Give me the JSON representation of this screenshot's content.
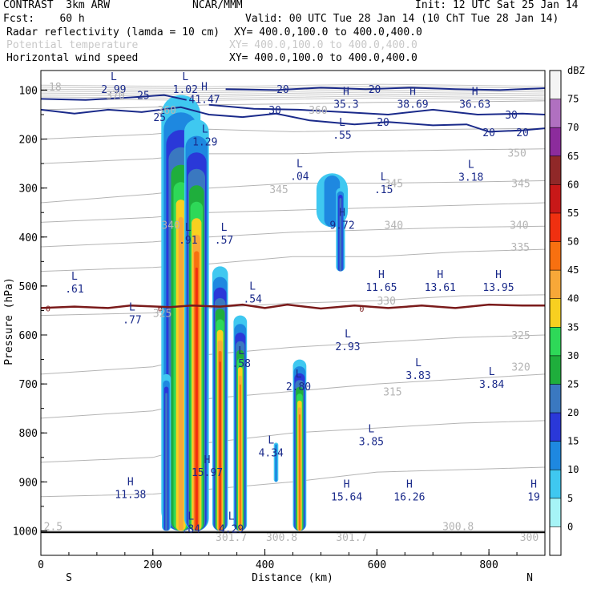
{
  "header": {
    "line1_left": "CONTRAST  3km ARW",
    "line1_center": "NCAR/MMM",
    "line1_right": "Init: 12 UTC Sat 25 Jan 14",
    "line2_left": "Fcst:    60 h",
    "line2_right": "Valid: 00 UTC Tue 28 Jan 14 (10 ChT Tue 28 Jan 14)",
    "field1_name": "Radar reflectivity (lamda = 10 cm)",
    "field1_xy": "XY= 400.0,100.0 to 400.0,400.0",
    "field2_name": "Potential temperature",
    "field2_xy": "XY= 400.0,100.0 to 400.0,400.0",
    "field3_name": "Horizontal wind speed",
    "field3_xy": "XY= 400.0,100.0 to 400.0,400.0"
  },
  "chart_data": {
    "type": "cross-section",
    "xlabel": "Distance (km)",
    "ylabel": "Pressure (hPa)",
    "xlim": [
      0,
      900
    ],
    "ylim": [
      1050,
      60
    ],
    "x_ticks": [
      0,
      200,
      400,
      600,
      800
    ],
    "x_tick_labels": [
      "0",
      "200",
      "400",
      "600",
      "800"
    ],
    "y_ticks": [
      100,
      200,
      300,
      400,
      500,
      600,
      700,
      800,
      900,
      1000
    ],
    "y_tick_labels": [
      "100",
      "200",
      "300",
      "400",
      "500",
      "600",
      "700",
      "800",
      "900",
      "1000"
    ],
    "south_label": "S",
    "north_label": "N",
    "colorbar": {
      "unit": "dBZ",
      "levels": [
        0,
        5,
        10,
        15,
        20,
        25,
        30,
        35,
        40,
        45,
        50,
        55,
        60,
        65,
        70,
        75
      ],
      "level_labels": [
        "0",
        "5",
        "10",
        "15",
        "20",
        "25",
        "30",
        "35",
        "40",
        "45",
        "50",
        "55",
        "60",
        "65",
        "70",
        "75"
      ],
      "colors": [
        "#ffffff",
        "#a6f4f6",
        "#3fc8f0",
        "#1e88e0",
        "#2a38d8",
        "#3a78c0",
        "#1fae3c",
        "#2ed858",
        "#f8d020",
        "#f8a838",
        "#f87010",
        "#f03010",
        "#c81818",
        "#902828",
        "#8c2c9c",
        "#b070c0",
        "#f4f4f4"
      ]
    },
    "freezing_level": {
      "label": "0",
      "points": [
        [
          0,
          545
        ],
        [
          60,
          542
        ],
        [
          120,
          545
        ],
        [
          160,
          540
        ],
        [
          230,
          543
        ],
        [
          270,
          540
        ],
        [
          320,
          542
        ],
        [
          360,
          538
        ],
        [
          400,
          545
        ],
        [
          440,
          538
        ],
        [
          500,
          546
        ],
        [
          560,
          540
        ],
        [
          620,
          545
        ],
        [
          680,
          540
        ],
        [
          740,
          545
        ],
        [
          800,
          538
        ],
        [
          860,
          540
        ],
        [
          900,
          540
        ]
      ]
    },
    "ground_line": [
      [
        0,
        1003
      ],
      [
        900,
        1003
      ]
    ],
    "theta_contours": [
      {
        "level": 300,
        "points": [
          [
            0,
            1000
          ],
          [
            900,
            1000
          ]
        ]
      },
      {
        "level": 305,
        "points": [
          [
            0,
            930
          ],
          [
            200,
            925
          ],
          [
            300,
            915
          ],
          [
            450,
            900
          ],
          [
            600,
            880
          ],
          [
            750,
            875
          ],
          [
            900,
            870
          ]
        ]
      },
      {
        "level": 310,
        "points": [
          [
            0,
            860
          ],
          [
            200,
            850
          ],
          [
            300,
            820
          ],
          [
            450,
            800
          ],
          [
            600,
            790
          ],
          [
            750,
            780
          ],
          [
            900,
            775
          ]
        ]
      },
      {
        "level": 315,
        "points": [
          [
            0,
            770
          ],
          [
            200,
            755
          ],
          [
            300,
            730
          ],
          [
            450,
            715
          ],
          [
            600,
            700
          ],
          [
            750,
            690
          ],
          [
            900,
            680
          ]
        ]
      },
      {
        "level": 320,
        "points": [
          [
            0,
            680
          ],
          [
            200,
            665
          ],
          [
            300,
            640
          ],
          [
            450,
            625
          ],
          [
            600,
            615
          ],
          [
            750,
            605
          ],
          [
            900,
            600
          ]
        ]
      },
      {
        "level": 325,
        "points": [
          [
            0,
            560
          ],
          [
            200,
            555
          ],
          [
            300,
            545
          ],
          [
            450,
            535
          ],
          [
            600,
            530
          ],
          [
            750,
            520
          ],
          [
            900,
            518
          ]
        ]
      },
      {
        "level": 330,
        "points": [
          [
            0,
            470
          ],
          [
            200,
            462
          ],
          [
            300,
            455
          ],
          [
            450,
            440
          ],
          [
            600,
            440
          ],
          [
            750,
            430
          ],
          [
            900,
            425
          ]
        ]
      },
      {
        "level": 335,
        "points": [
          [
            0,
            420
          ],
          [
            200,
            410
          ],
          [
            300,
            400
          ],
          [
            450,
            390
          ],
          [
            600,
            385
          ],
          [
            750,
            380
          ],
          [
            900,
            378
          ]
        ]
      },
      {
        "level": 340,
        "points": [
          [
            0,
            370
          ],
          [
            200,
            360
          ],
          [
            300,
            350
          ],
          [
            450,
            345
          ],
          [
            600,
            340
          ],
          [
            750,
            335
          ],
          [
            900,
            330
          ]
        ]
      },
      {
        "level": 345,
        "points": [
          [
            0,
            330
          ],
          [
            200,
            312
          ],
          [
            300,
            300
          ],
          [
            450,
            290
          ],
          [
            600,
            290
          ],
          [
            750,
            288
          ],
          [
            900,
            285
          ]
        ]
      },
      {
        "level": 350,
        "points": [
          [
            0,
            250
          ],
          [
            200,
            240
          ],
          [
            300,
            230
          ],
          [
            450,
            230
          ],
          [
            600,
            225
          ],
          [
            750,
            222
          ],
          [
            900,
            220
          ]
        ]
      },
      {
        "level": 355,
        "points": [
          [
            0,
            200
          ],
          [
            200,
            190
          ],
          [
            300,
            180
          ],
          [
            450,
            185
          ],
          [
            600,
            182
          ],
          [
            750,
            180
          ],
          [
            900,
            178
          ]
        ]
      },
      {
        "level": 360,
        "points": [
          [
            0,
            140
          ],
          [
            200,
            135
          ],
          [
            300,
            130
          ],
          [
            450,
            128
          ],
          [
            600,
            125
          ],
          [
            750,
            124
          ],
          [
            900,
            122
          ]
        ]
      }
    ],
    "wind_contours": [
      {
        "level": 20,
        "points": [
          [
            0,
            140
          ],
          [
            60,
            148
          ],
          [
            120,
            140
          ],
          [
            180,
            145
          ],
          [
            250,
            135
          ],
          [
            300,
            150
          ],
          [
            360,
            155
          ],
          [
            420,
            148
          ],
          [
            480,
            162
          ],
          [
            560,
            170
          ],
          [
            620,
            165
          ],
          [
            700,
            172
          ],
          [
            760,
            170
          ],
          [
            800,
            185
          ],
          [
            860,
            182
          ],
          [
            900,
            178
          ]
        ]
      },
      {
        "level": 25,
        "points": [
          [
            0,
            118
          ],
          [
            80,
            120
          ],
          [
            160,
            115
          ],
          [
            220,
            110
          ],
          [
            260,
            120
          ]
        ]
      },
      {
        "level": 30,
        "points": [
          [
            300,
            130
          ],
          [
            380,
            138
          ],
          [
            460,
            140
          ],
          [
            540,
            145
          ],
          [
            620,
            150
          ],
          [
            700,
            140
          ],
          [
            780,
            150
          ],
          [
            860,
            148
          ],
          [
            900,
            150
          ]
        ]
      },
      {
        "level": 20,
        "points": [
          [
            330,
            98
          ],
          [
            420,
            100
          ],
          [
            500,
            95
          ],
          [
            580,
            98
          ],
          [
            660,
            95
          ],
          [
            740,
            98
          ],
          [
            820,
            100
          ],
          [
            900,
            96
          ]
        ]
      }
    ],
    "reflectivity_cells": [
      {
        "x": 250,
        "p_top": 110,
        "p_bot": 1000,
        "half_width": 35,
        "peak_dbz": 40
      },
      {
        "x": 278,
        "p_top": 160,
        "p_bot": 1000,
        "half_width": 22,
        "peak_dbz": 50
      },
      {
        "x": 320,
        "p_top": 460,
        "p_bot": 1000,
        "half_width": 14,
        "peak_dbz": 50
      },
      {
        "x": 356,
        "p_top": 560,
        "p_bot": 1000,
        "half_width": 12,
        "peak_dbz": 45
      },
      {
        "x": 462,
        "p_top": 650,
        "p_bot": 1000,
        "half_width": 12,
        "peak_dbz": 45
      },
      {
        "x": 224,
        "p_top": 680,
        "p_bot": 1000,
        "half_width": 8,
        "peak_dbz": 20
      },
      {
        "x": 420,
        "p_top": 820,
        "p_bot": 900,
        "half_width": 4,
        "peak_dbz": 10
      },
      {
        "x": 520,
        "p_top": 270,
        "p_bot": 380,
        "half_width": 28,
        "peak_dbz": 10
      },
      {
        "x": 535,
        "p_top": 300,
        "p_bot": 470,
        "half_width": 8,
        "peak_dbz": 20
      }
    ],
    "extrema_labels": [
      {
        "type": "L",
        "value": "2.99",
        "x": 130,
        "p": 93
      },
      {
        "type": "L",
        "value": "1.02",
        "x": 258,
        "p": 93
      },
      {
        "type": "H",
        "value": "41.47",
        "x": 292,
        "p": 113
      },
      {
        "type": "H",
        "value": "35.3",
        "x": 545,
        "p": 123
      },
      {
        "type": "H",
        "value": "38.69",
        "x": 664,
        "p": 123
      },
      {
        "type": "H",
        "value": "36.63",
        "x": 775,
        "p": 123
      },
      {
        "type": "L",
        "value": "1.29",
        "x": 293,
        "p": 200
      },
      {
        "type": "L",
        "value": ".55",
        "x": 538,
        "p": 186
      },
      {
        "type": "L",
        "value": ".04",
        "x": 462,
        "p": 270
      },
      {
        "type": "L",
        "value": ".15",
        "x": 612,
        "p": 297
      },
      {
        "type": "L",
        "value": "3.18",
        "x": 768,
        "p": 272
      },
      {
        "type": "H",
        "value": "9.72",
        "x": 538,
        "p": 370
      },
      {
        "type": "L",
        "value": ".91",
        "x": 263,
        "p": 400
      },
      {
        "type": "L",
        "value": ".57",
        "x": 327,
        "p": 400
      },
      {
        "type": "L",
        "value": ".61",
        "x": 60,
        "p": 500
      },
      {
        "type": "H",
        "value": "11.65",
        "x": 608,
        "p": 497
      },
      {
        "type": "H",
        "value": "13.61",
        "x": 713,
        "p": 497
      },
      {
        "type": "H",
        "value": "13.95",
        "x": 817,
        "p": 497
      },
      {
        "type": "L",
        "value": ".54",
        "x": 378,
        "p": 521
      },
      {
        "type": "L",
        "value": ".77",
        "x": 163,
        "p": 563
      },
      {
        "type": "L",
        "value": "2.93",
        "x": 548,
        "p": 618
      },
      {
        "type": "L",
        "value": ".58",
        "x": 358,
        "p": 652
      },
      {
        "type": "L",
        "value": "3.83",
        "x": 674,
        "p": 677
      },
      {
        "type": "L",
        "value": "3.84",
        "x": 805,
        "p": 695
      },
      {
        "type": "L",
        "value": "2.80",
        "x": 460,
        "p": 700
      },
      {
        "type": "L",
        "value": "3.85",
        "x": 590,
        "p": 812
      },
      {
        "type": "L",
        "value": "4.34",
        "x": 411,
        "p": 835
      },
      {
        "type": "H",
        "value": "15.97",
        "x": 297,
        "p": 875
      },
      {
        "type": "H",
        "value": "11.38",
        "x": 160,
        "p": 920
      },
      {
        "type": "H",
        "value": "15.64",
        "x": 546,
        "p": 925
      },
      {
        "type": "H",
        "value": "16.26",
        "x": 658,
        "p": 925
      },
      {
        "type": "H",
        "value": "19",
        "x": 880,
        "p": 925
      },
      {
        "type": "L",
        "value": ".84",
        "x": 268,
        "p": 990
      },
      {
        "type": "L",
        "value": "4.29",
        "x": 340,
        "p": 990
      }
    ],
    "contour_value_labels": [
      {
        "text": "25",
        "x": 183,
        "p": 110,
        "kind": "wind"
      },
      {
        "text": "25",
        "x": 212,
        "p": 155,
        "kind": "wind"
      },
      {
        "text": "20",
        "x": 432,
        "p": 98,
        "kind": "wind"
      },
      {
        "text": "20",
        "x": 596,
        "p": 98,
        "kind": "wind"
      },
      {
        "text": "30",
        "x": 418,
        "p": 140,
        "kind": "wind"
      },
      {
        "text": "30",
        "x": 840,
        "p": 150,
        "kind": "wind"
      },
      {
        "text": "20",
        "x": 611,
        "p": 165,
        "kind": "wind"
      },
      {
        "text": "20",
        "x": 800,
        "p": 186,
        "kind": "wind"
      },
      {
        "text": "20",
        "x": 860,
        "p": 186,
        "kind": "wind"
      },
      {
        "text": ".18",
        "x": 20,
        "p": 93,
        "kind": "theta"
      },
      {
        "text": "370",
        "x": 133,
        "p": 110,
        "kind": "theta"
      },
      {
        "text": "360",
        "x": 225,
        "p": 140,
        "kind": "theta"
      },
      {
        "text": "360",
        "x": 495,
        "p": 140,
        "kind": "theta"
      },
      {
        "text": "350",
        "x": 850,
        "p": 228,
        "kind": "theta"
      },
      {
        "text": "345",
        "x": 425,
        "p": 302,
        "kind": "theta"
      },
      {
        "text": "345",
        "x": 630,
        "p": 290,
        "kind": "theta"
      },
      {
        "text": "345",
        "x": 857,
        "p": 290,
        "kind": "theta"
      },
      {
        "text": "340",
        "x": 232,
        "p": 375,
        "kind": "theta"
      },
      {
        "text": "340",
        "x": 630,
        "p": 375,
        "kind": "theta"
      },
      {
        "text": "340",
        "x": 854,
        "p": 375,
        "kind": "theta"
      },
      {
        "text": "335",
        "x": 856,
        "p": 420,
        "kind": "theta"
      },
      {
        "text": "330",
        "x": 617,
        "p": 530,
        "kind": "theta"
      },
      {
        "text": "325",
        "x": 217,
        "p": 555,
        "kind": "theta"
      },
      {
        "text": "325",
        "x": 857,
        "p": 600,
        "kind": "theta"
      },
      {
        "text": "320",
        "x": 857,
        "p": 665,
        "kind": "theta"
      },
      {
        "text": "315",
        "x": 628,
        "p": 715,
        "kind": "theta"
      },
      {
        "text": "2.5",
        "x": 22,
        "p": 990,
        "kind": "theta"
      },
      {
        "text": "301.7",
        "x": 340,
        "p": 1012,
        "kind": "theta"
      },
      {
        "text": "300.8",
        "x": 430,
        "p": 1012,
        "kind": "theta"
      },
      {
        "text": "301.7",
        "x": 555,
        "p": 1012,
        "kind": "theta"
      },
      {
        "text": "300.8",
        "x": 745,
        "p": 990,
        "kind": "theta"
      },
      {
        "text": "300",
        "x": 872,
        "p": 1012,
        "kind": "theta"
      }
    ]
  }
}
